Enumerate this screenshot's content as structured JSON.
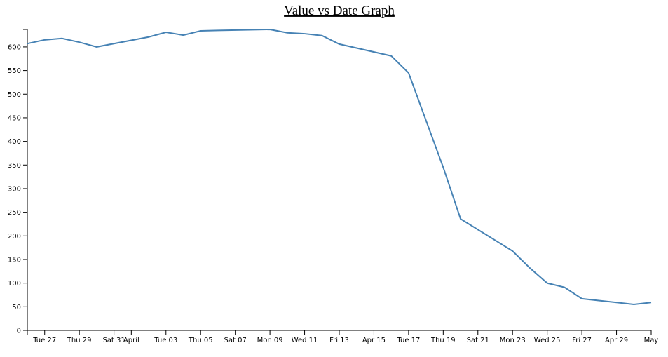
{
  "chart_data": {
    "type": "line",
    "title": "Value vs Date Graph",
    "x": [
      "Mar 26",
      "Mar 27",
      "Mar 28",
      "Mar 29",
      "Mar 30",
      "Apr 2",
      "Apr 3",
      "Apr 4",
      "Apr 5",
      "Apr 6",
      "Apr 9",
      "Apr 10",
      "Apr 11",
      "Apr 12",
      "Apr 13",
      "Apr 16",
      "Apr 17",
      "Apr 19",
      "Apr 20",
      "Apr 23",
      "Apr 24",
      "Apr 25",
      "Apr 26",
      "Apr 27",
      "Apr 30",
      "May 1"
    ],
    "values": [
      607,
      615,
      618,
      610,
      600,
      621,
      631,
      625,
      634,
      635,
      637,
      630,
      628,
      624,
      606,
      581,
      545,
      345,
      236,
      168,
      132,
      100,
      91,
      67,
      55,
      59
    ],
    "color": "steelblue",
    "xlim": [
      "Mar 26",
      "May 1"
    ],
    "xticks": [
      {
        "value": "Mar 27",
        "label": "Tue 27"
      },
      {
        "value": "Mar 29",
        "label": "Thu 29"
      },
      {
        "value": "Mar 31",
        "label": "Sat 31"
      },
      {
        "value": "Apr 1",
        "label": "April"
      },
      {
        "value": "Apr 3",
        "label": "Tue 03"
      },
      {
        "value": "Apr 5",
        "label": "Thu 05"
      },
      {
        "value": "Apr 7",
        "label": "Sat 07"
      },
      {
        "value": "Apr 9",
        "label": "Mon 09"
      },
      {
        "value": "Apr 11",
        "label": "Wed 11"
      },
      {
        "value": "Apr 13",
        "label": "Fri 13"
      },
      {
        "value": "Apr 15",
        "label": "Apr 15"
      },
      {
        "value": "Apr 17",
        "label": "Tue 17"
      },
      {
        "value": "Apr 19",
        "label": "Thu 19"
      },
      {
        "value": "Apr 21",
        "label": "Sat 21"
      },
      {
        "value": "Apr 23",
        "label": "Mon 23"
      },
      {
        "value": "Apr 25",
        "label": "Wed 25"
      },
      {
        "value": "Apr 27",
        "label": "Fri 27"
      },
      {
        "value": "Apr 29",
        "label": "Apr 29"
      },
      {
        "value": "May 1",
        "label": "May"
      }
    ],
    "ylim": [
      0,
      637
    ],
    "yticks": [
      0,
      50,
      100,
      150,
      200,
      250,
      300,
      350,
      400,
      450,
      500,
      550,
      600
    ]
  }
}
